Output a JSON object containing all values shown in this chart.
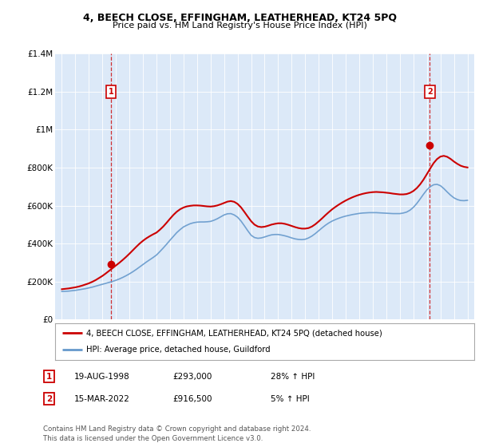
{
  "title": "4, BEECH CLOSE, EFFINGHAM, LEATHERHEAD, KT24 5PQ",
  "subtitle": "Price paid vs. HM Land Registry's House Price Index (HPI)",
  "legend_line1": "4, BEECH CLOSE, EFFINGHAM, LEATHERHEAD, KT24 5PQ (detached house)",
  "legend_line2": "HPI: Average price, detached house, Guildford",
  "footnote": "Contains HM Land Registry data © Crown copyright and database right 2024.\nThis data is licensed under the Open Government Licence v3.0.",
  "sale1_date": "19-AUG-1998",
  "sale1_price": "£293,000",
  "sale1_hpi": "28% ↑ HPI",
  "sale2_date": "15-MAR-2022",
  "sale2_price": "£916,500",
  "sale2_hpi": "5% ↑ HPI",
  "sale1_x": 1998.63,
  "sale1_y": 293000,
  "sale2_x": 2022.21,
  "sale2_y": 916500,
  "ylim": [
    0,
    1400000
  ],
  "xlim_left": 1994.5,
  "xlim_right": 2025.5,
  "bg_color": "#dce9f8",
  "red_line_color": "#cc0000",
  "blue_line_color": "#6699cc",
  "vline_color": "#cc0000",
  "marker_box_color": "#cc0000",
  "yticks": [
    0,
    200000,
    400000,
    600000,
    800000,
    1000000,
    1200000,
    1400000
  ],
  "ytick_labels": [
    "£0",
    "£200K",
    "£400K",
    "£600K",
    "£800K",
    "£1M",
    "£1.2M",
    "£1.4M"
  ],
  "xticks": [
    1995,
    1996,
    1997,
    1998,
    1999,
    2000,
    2001,
    2002,
    2003,
    2004,
    2005,
    2006,
    2007,
    2008,
    2009,
    2010,
    2011,
    2012,
    2013,
    2014,
    2015,
    2016,
    2017,
    2018,
    2019,
    2020,
    2021,
    2022,
    2023,
    2024,
    2025
  ],
  "hpi_x": [
    1995.0,
    1995.25,
    1995.5,
    1995.75,
    1996.0,
    1996.25,
    1996.5,
    1996.75,
    1997.0,
    1997.25,
    1997.5,
    1997.75,
    1998.0,
    1998.25,
    1998.5,
    1998.75,
    1999.0,
    1999.25,
    1999.5,
    1999.75,
    2000.0,
    2000.25,
    2000.5,
    2000.75,
    2001.0,
    2001.25,
    2001.5,
    2001.75,
    2002.0,
    2002.25,
    2002.5,
    2002.75,
    2003.0,
    2003.25,
    2003.5,
    2003.75,
    2004.0,
    2004.25,
    2004.5,
    2004.75,
    2005.0,
    2005.25,
    2005.5,
    2005.75,
    2006.0,
    2006.25,
    2006.5,
    2006.75,
    2007.0,
    2007.25,
    2007.5,
    2007.75,
    2008.0,
    2008.25,
    2008.5,
    2008.75,
    2009.0,
    2009.25,
    2009.5,
    2009.75,
    2010.0,
    2010.25,
    2010.5,
    2010.75,
    2011.0,
    2011.25,
    2011.5,
    2011.75,
    2012.0,
    2012.25,
    2012.5,
    2012.75,
    2013.0,
    2013.25,
    2013.5,
    2013.75,
    2014.0,
    2014.25,
    2014.5,
    2014.75,
    2015.0,
    2015.25,
    2015.5,
    2015.75,
    2016.0,
    2016.25,
    2016.5,
    2016.75,
    2017.0,
    2017.25,
    2017.5,
    2017.75,
    2018.0,
    2018.25,
    2018.5,
    2018.75,
    2019.0,
    2019.25,
    2019.5,
    2019.75,
    2020.0,
    2020.25,
    2020.5,
    2020.75,
    2021.0,
    2021.25,
    2021.5,
    2021.75,
    2022.0,
    2022.25,
    2022.5,
    2022.75,
    2023.0,
    2023.25,
    2023.5,
    2023.75,
    2024.0,
    2024.25,
    2024.5,
    2024.75,
    2025.0
  ],
  "hpi_y": [
    148000,
    149000,
    150000,
    152000,
    154000,
    157000,
    160000,
    163000,
    167000,
    171000,
    176000,
    181000,
    186000,
    191000,
    196000,
    201000,
    207000,
    214000,
    222000,
    231000,
    241000,
    252000,
    264000,
    277000,
    290000,
    303000,
    315000,
    327000,
    340000,
    358000,
    377000,
    397000,
    418000,
    438000,
    458000,
    474000,
    488000,
    497000,
    505000,
    510000,
    513000,
    514000,
    514000,
    515000,
    517000,
    523000,
    531000,
    541000,
    551000,
    557000,
    558000,
    551000,
    539000,
    519000,
    494000,
    468000,
    444000,
    432000,
    428000,
    430000,
    435000,
    441000,
    446000,
    448000,
    448000,
    445000,
    441000,
    436000,
    430000,
    425000,
    422000,
    421000,
    423000,
    430000,
    440000,
    453000,
    468000,
    483000,
    497000,
    509000,
    519000,
    527000,
    534000,
    540000,
    545000,
    549000,
    553000,
    556000,
    559000,
    561000,
    562000,
    563000,
    563000,
    563000,
    562000,
    561000,
    560000,
    559000,
    558000,
    558000,
    558000,
    561000,
    566000,
    576000,
    591000,
    611000,
    635000,
    660000,
    683000,
    700000,
    710000,
    712000,
    705000,
    690000,
    672000,
    655000,
    641000,
    632000,
    627000,
    626000,
    628000
  ],
  "property_x": [
    1995.0,
    1995.25,
    1995.5,
    1995.75,
    1996.0,
    1996.25,
    1996.5,
    1996.75,
    1997.0,
    1997.25,
    1997.5,
    1997.75,
    1998.0,
    1998.25,
    1998.5,
    1998.75,
    1999.0,
    1999.25,
    1999.5,
    1999.75,
    2000.0,
    2000.25,
    2000.5,
    2000.75,
    2001.0,
    2001.25,
    2001.5,
    2001.75,
    2002.0,
    2002.25,
    2002.5,
    2002.75,
    2003.0,
    2003.25,
    2003.5,
    2003.75,
    2004.0,
    2004.25,
    2004.5,
    2004.75,
    2005.0,
    2005.25,
    2005.5,
    2005.75,
    2006.0,
    2006.25,
    2006.5,
    2006.75,
    2007.0,
    2007.25,
    2007.5,
    2007.75,
    2008.0,
    2008.25,
    2008.5,
    2008.75,
    2009.0,
    2009.25,
    2009.5,
    2009.75,
    2010.0,
    2010.25,
    2010.5,
    2010.75,
    2011.0,
    2011.25,
    2011.5,
    2011.75,
    2012.0,
    2012.25,
    2012.5,
    2012.75,
    2013.0,
    2013.25,
    2013.5,
    2013.75,
    2014.0,
    2014.25,
    2014.5,
    2014.75,
    2015.0,
    2015.25,
    2015.5,
    2015.75,
    2016.0,
    2016.25,
    2016.5,
    2016.75,
    2017.0,
    2017.25,
    2017.5,
    2017.75,
    2018.0,
    2018.25,
    2018.5,
    2018.75,
    2019.0,
    2019.25,
    2019.5,
    2019.75,
    2020.0,
    2020.25,
    2020.5,
    2020.75,
    2021.0,
    2021.25,
    2021.5,
    2021.75,
    2022.0,
    2022.25,
    2022.5,
    2022.75,
    2023.0,
    2023.25,
    2023.5,
    2023.75,
    2024.0,
    2024.25,
    2024.5,
    2024.75,
    2025.0
  ],
  "property_y": [
    160000,
    162000,
    164000,
    167000,
    170000,
    174000,
    179000,
    185000,
    191000,
    199000,
    208000,
    219000,
    230000,
    243000,
    257000,
    271000,
    285000,
    299000,
    314000,
    330000,
    347000,
    365000,
    383000,
    400000,
    415000,
    428000,
    439000,
    449000,
    458000,
    473000,
    490000,
    510000,
    531000,
    551000,
    568000,
    581000,
    590000,
    596000,
    599000,
    601000,
    601000,
    600000,
    598000,
    596000,
    595000,
    597000,
    601000,
    607000,
    614000,
    621000,
    624000,
    620000,
    609000,
    591000,
    567000,
    542000,
    518000,
    500000,
    490000,
    487000,
    489000,
    494000,
    500000,
    504000,
    507000,
    507000,
    504000,
    499000,
    493000,
    487000,
    482000,
    479000,
    479000,
    482000,
    490000,
    502000,
    517000,
    533000,
    550000,
    566000,
    581000,
    594000,
    606000,
    617000,
    627000,
    636000,
    644000,
    651000,
    657000,
    662000,
    666000,
    669000,
    671000,
    672000,
    671000,
    670000,
    668000,
    666000,
    663000,
    661000,
    659000,
    659000,
    661000,
    667000,
    677000,
    692000,
    712000,
    737000,
    766000,
    796000,
    824000,
    845000,
    858000,
    862000,
    857000,
    846000,
    832000,
    820000,
    810000,
    804000,
    801000
  ]
}
